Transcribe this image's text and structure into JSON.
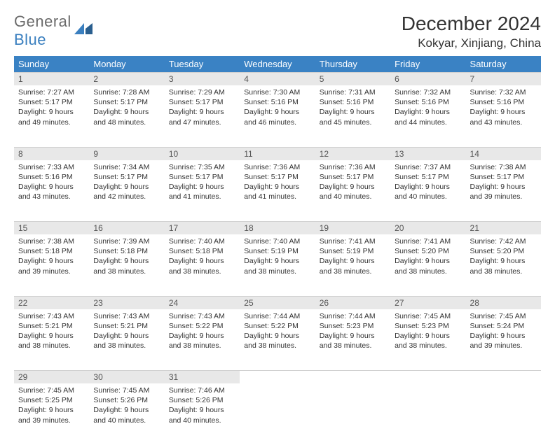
{
  "logo": {
    "word1": "General",
    "word2": "Blue"
  },
  "title": "December 2024",
  "location": "Kokyar, Xinjiang, China",
  "colors": {
    "header_bg": "#3a82c4",
    "header_text": "#ffffff",
    "daynum_bg": "#e8e8e8",
    "daynum_text": "#555555",
    "body_text": "#333333",
    "logo_gray": "#6b6b6b",
    "logo_blue": "#3a7fbf"
  },
  "weekdays": [
    "Sunday",
    "Monday",
    "Tuesday",
    "Wednesday",
    "Thursday",
    "Friday",
    "Saturday"
  ],
  "weeks": [
    [
      {
        "n": "1",
        "sr": "7:27 AM",
        "ss": "5:17 PM",
        "dl": "9 hours and 49 minutes."
      },
      {
        "n": "2",
        "sr": "7:28 AM",
        "ss": "5:17 PM",
        "dl": "9 hours and 48 minutes."
      },
      {
        "n": "3",
        "sr": "7:29 AM",
        "ss": "5:17 PM",
        "dl": "9 hours and 47 minutes."
      },
      {
        "n": "4",
        "sr": "7:30 AM",
        "ss": "5:16 PM",
        "dl": "9 hours and 46 minutes."
      },
      {
        "n": "5",
        "sr": "7:31 AM",
        "ss": "5:16 PM",
        "dl": "9 hours and 45 minutes."
      },
      {
        "n": "6",
        "sr": "7:32 AM",
        "ss": "5:16 PM",
        "dl": "9 hours and 44 minutes."
      },
      {
        "n": "7",
        "sr": "7:32 AM",
        "ss": "5:16 PM",
        "dl": "9 hours and 43 minutes."
      }
    ],
    [
      {
        "n": "8",
        "sr": "7:33 AM",
        "ss": "5:16 PM",
        "dl": "9 hours and 43 minutes."
      },
      {
        "n": "9",
        "sr": "7:34 AM",
        "ss": "5:17 PM",
        "dl": "9 hours and 42 minutes."
      },
      {
        "n": "10",
        "sr": "7:35 AM",
        "ss": "5:17 PM",
        "dl": "9 hours and 41 minutes."
      },
      {
        "n": "11",
        "sr": "7:36 AM",
        "ss": "5:17 PM",
        "dl": "9 hours and 41 minutes."
      },
      {
        "n": "12",
        "sr": "7:36 AM",
        "ss": "5:17 PM",
        "dl": "9 hours and 40 minutes."
      },
      {
        "n": "13",
        "sr": "7:37 AM",
        "ss": "5:17 PM",
        "dl": "9 hours and 40 minutes."
      },
      {
        "n": "14",
        "sr": "7:38 AM",
        "ss": "5:17 PM",
        "dl": "9 hours and 39 minutes."
      }
    ],
    [
      {
        "n": "15",
        "sr": "7:38 AM",
        "ss": "5:18 PM",
        "dl": "9 hours and 39 minutes."
      },
      {
        "n": "16",
        "sr": "7:39 AM",
        "ss": "5:18 PM",
        "dl": "9 hours and 38 minutes."
      },
      {
        "n": "17",
        "sr": "7:40 AM",
        "ss": "5:18 PM",
        "dl": "9 hours and 38 minutes."
      },
      {
        "n": "18",
        "sr": "7:40 AM",
        "ss": "5:19 PM",
        "dl": "9 hours and 38 minutes."
      },
      {
        "n": "19",
        "sr": "7:41 AM",
        "ss": "5:19 PM",
        "dl": "9 hours and 38 minutes."
      },
      {
        "n": "20",
        "sr": "7:41 AM",
        "ss": "5:20 PM",
        "dl": "9 hours and 38 minutes."
      },
      {
        "n": "21",
        "sr": "7:42 AM",
        "ss": "5:20 PM",
        "dl": "9 hours and 38 minutes."
      }
    ],
    [
      {
        "n": "22",
        "sr": "7:43 AM",
        "ss": "5:21 PM",
        "dl": "9 hours and 38 minutes."
      },
      {
        "n": "23",
        "sr": "7:43 AM",
        "ss": "5:21 PM",
        "dl": "9 hours and 38 minutes."
      },
      {
        "n": "24",
        "sr": "7:43 AM",
        "ss": "5:22 PM",
        "dl": "9 hours and 38 minutes."
      },
      {
        "n": "25",
        "sr": "7:44 AM",
        "ss": "5:22 PM",
        "dl": "9 hours and 38 minutes."
      },
      {
        "n": "26",
        "sr": "7:44 AM",
        "ss": "5:23 PM",
        "dl": "9 hours and 38 minutes."
      },
      {
        "n": "27",
        "sr": "7:45 AM",
        "ss": "5:23 PM",
        "dl": "9 hours and 38 minutes."
      },
      {
        "n": "28",
        "sr": "7:45 AM",
        "ss": "5:24 PM",
        "dl": "9 hours and 39 minutes."
      }
    ],
    [
      {
        "n": "29",
        "sr": "7:45 AM",
        "ss": "5:25 PM",
        "dl": "9 hours and 39 minutes."
      },
      {
        "n": "30",
        "sr": "7:45 AM",
        "ss": "5:26 PM",
        "dl": "9 hours and 40 minutes."
      },
      {
        "n": "31",
        "sr": "7:46 AM",
        "ss": "5:26 PM",
        "dl": "9 hours and 40 minutes."
      },
      null,
      null,
      null,
      null
    ]
  ],
  "labels": {
    "sunrise": "Sunrise:",
    "sunset": "Sunset:",
    "daylight": "Daylight:"
  }
}
